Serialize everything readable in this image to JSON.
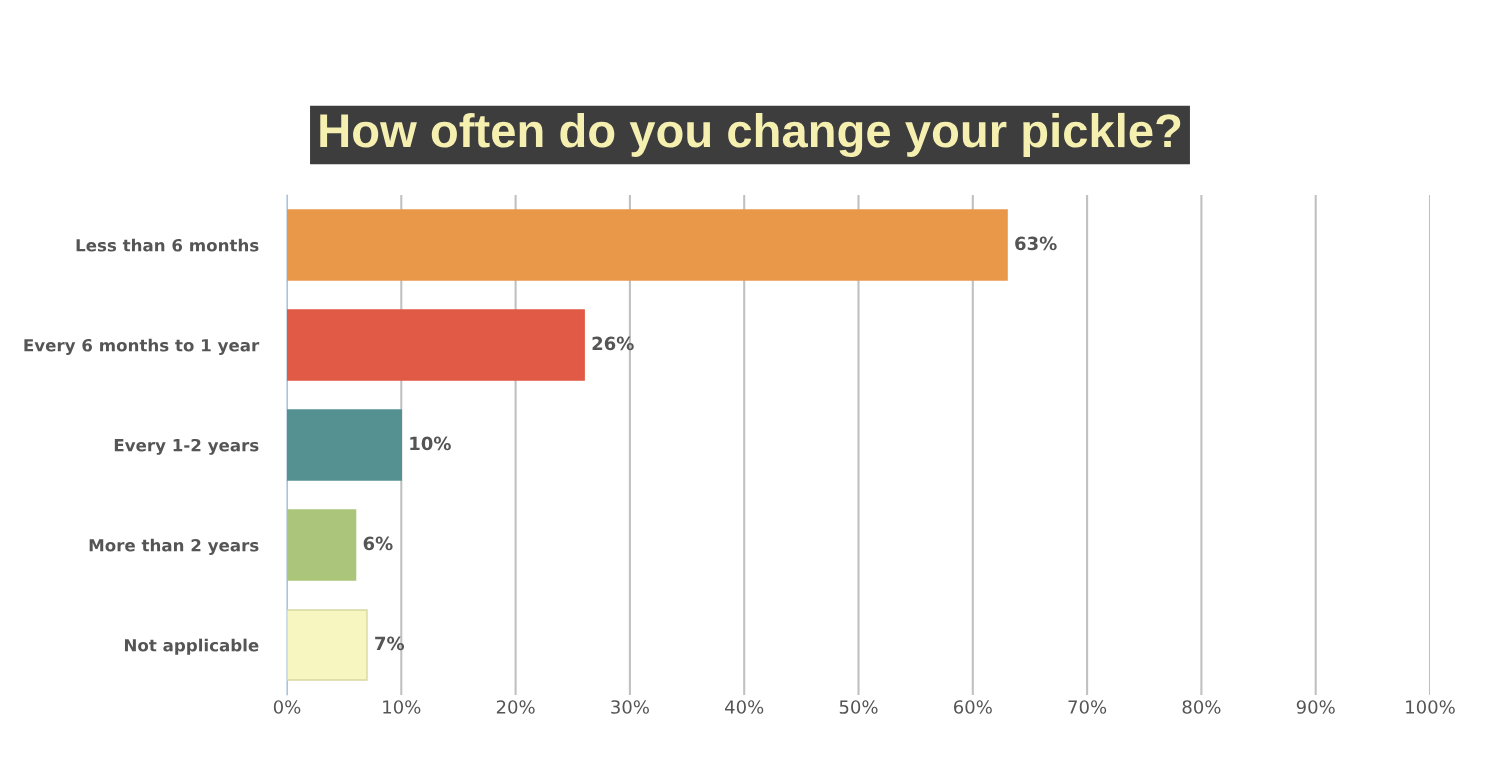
{
  "chart_data": {
    "type": "bar",
    "orientation": "horizontal",
    "title": "How often do you change your pickle?",
    "categories": [
      "Less than 6 months",
      "Every 6 months to 1 year",
      "Every 1-2 years",
      "More than 2 years",
      "Not applicable"
    ],
    "values": [
      63,
      26,
      10,
      6,
      7
    ],
    "colors": [
      "#e9984a",
      "#e05a45",
      "#559191",
      "#abc67a",
      "#f7f5c0"
    ],
    "value_labels": [
      "63%",
      "26%",
      "10%",
      "6%",
      "7%"
    ],
    "xlim": [
      0,
      100
    ],
    "xticks": [
      {
        "value": 0,
        "label": "0%"
      },
      {
        "value": 10,
        "label": "10%"
      },
      {
        "value": 20,
        "label": "20%"
      },
      {
        "value": 30,
        "label": "30%"
      },
      {
        "value": 40,
        "label": "40%"
      },
      {
        "value": 50,
        "label": "50%"
      },
      {
        "value": 60,
        "label": "60%"
      },
      {
        "value": 70,
        "label": "70%"
      },
      {
        "value": 80,
        "label": "80%"
      },
      {
        "value": 90,
        "label": "90%"
      },
      {
        "value": 100,
        "label": "100%"
      }
    ],
    "grid": "x"
  }
}
